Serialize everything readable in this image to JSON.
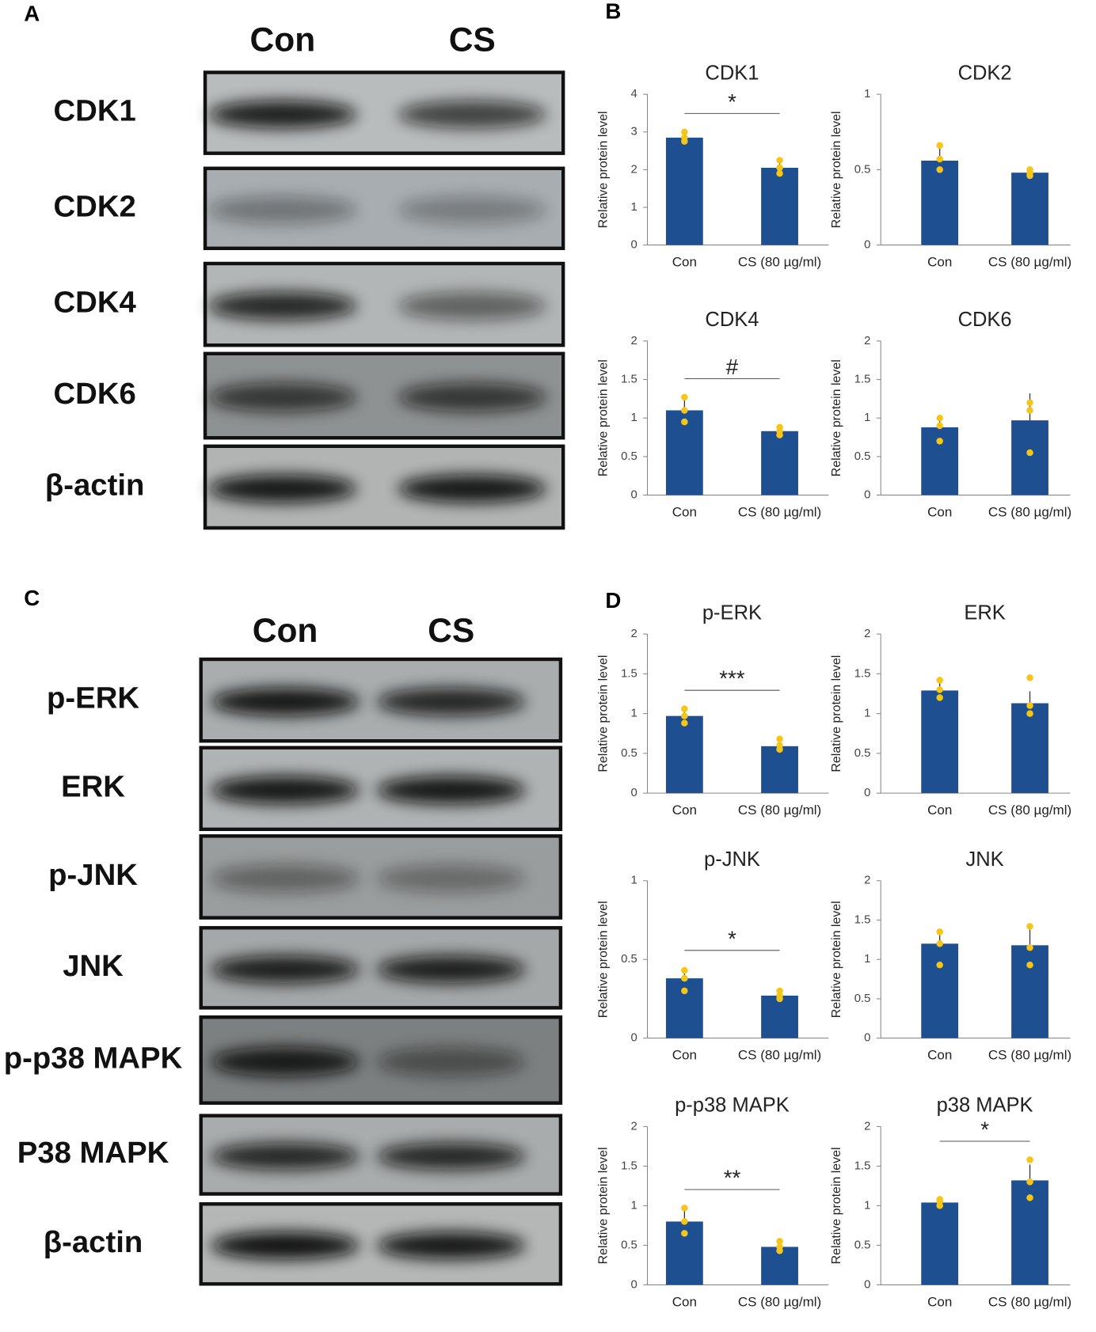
{
  "panels": [
    "A",
    "B",
    "C",
    "D"
  ],
  "blot_a": {
    "lanes": [
      "Con",
      "CS"
    ],
    "rows": [
      "CDK1",
      "CDK2",
      "CDK4",
      "CDK6",
      "β-actin"
    ]
  },
  "blot_c": {
    "lanes": [
      "Con",
      "CS"
    ],
    "rows": [
      "p-ERK",
      "ERK",
      "p-JNK",
      "JNK",
      "p-p38 MAPK",
      "P38 MAPK",
      "β-actin"
    ]
  },
  "chart_data": [
    {
      "type": "bar",
      "title": "CDK1",
      "y_label": "Relative protein level",
      "categories": [
        "Con",
        "CS (80 µg/ml)"
      ],
      "values": [
        2.85,
        2.05
      ],
      "errors": [
        0.15,
        0.2
      ],
      "points": [
        [
          2.75,
          2.85,
          3.0
        ],
        [
          1.9,
          2.05,
          2.25
        ]
      ],
      "significance": "*",
      "color": "#1e4f91",
      "point_color": "#f5c518",
      "ylim": [
        0,
        4
      ],
      "yticks": [
        0,
        1,
        2,
        3,
        4
      ]
    },
    {
      "type": "bar",
      "title": "CDK2",
      "y_label": "Relative protein level",
      "categories": [
        "Con",
        "CS (80 µg/ml)"
      ],
      "values": [
        0.56,
        0.48
      ],
      "errors": [
        0.1,
        0.02
      ],
      "points": [
        [
          0.5,
          0.57,
          0.66
        ],
        [
          0.46,
          0.48,
          0.5
        ]
      ],
      "color": "#1e4f91",
      "point_color": "#f5c518",
      "ylim": [
        0,
        1
      ],
      "yticks": [
        0,
        0.5,
        1
      ]
    },
    {
      "type": "bar",
      "title": "CDK4",
      "y_label": "Relative protein level",
      "categories": [
        "Con",
        "CS (80 µg/ml)"
      ],
      "values": [
        1.1,
        0.83
      ],
      "errors": [
        0.17,
        0.06
      ],
      "points": [
        [
          0.95,
          1.1,
          1.27
        ],
        [
          0.78,
          0.83,
          0.88
        ]
      ],
      "significance": "#",
      "color": "#1e4f91",
      "point_color": "#f5c518",
      "ylim": [
        0,
        2
      ],
      "yticks": [
        0,
        0.5,
        1,
        1.5,
        2
      ]
    },
    {
      "type": "bar",
      "title": "CDK6",
      "y_label": "Relative protein level",
      "categories": [
        "Con",
        "CS (80 µg/ml)"
      ],
      "values": [
        0.88,
        0.97
      ],
      "errors": [
        0.12,
        0.35
      ],
      "points": [
        [
          0.7,
          0.9,
          1.0
        ],
        [
          0.55,
          1.1,
          1.2
        ]
      ],
      "color": "#1e4f91",
      "point_color": "#f5c518",
      "ylim": [
        0,
        2
      ],
      "yticks": [
        0,
        0.5,
        1,
        1.5,
        2
      ]
    },
    {
      "type": "bar",
      "title": "p-ERK",
      "y_label": "Relative protein level",
      "categories": [
        "Con",
        "CS (80 µg/ml)"
      ],
      "values": [
        0.97,
        0.59
      ],
      "errors": [
        0.08,
        0.08
      ],
      "points": [
        [
          0.88,
          0.97,
          1.06
        ],
        [
          0.55,
          0.6,
          0.68
        ]
      ],
      "significance": "***",
      "color": "#1e4f91",
      "point_color": "#f5c518",
      "ylim": [
        0,
        2
      ],
      "yticks": [
        0,
        0.5,
        1,
        1.5,
        2
      ]
    },
    {
      "type": "bar",
      "title": "ERK",
      "y_label": "Relative protein level",
      "categories": [
        "Con",
        "CS (80 µg/ml)"
      ],
      "values": [
        1.29,
        1.13
      ],
      "errors": [
        0.12,
        0.15
      ],
      "points": [
        [
          1.2,
          1.3,
          1.42
        ],
        [
          1.0,
          1.1,
          1.45
        ]
      ],
      "color": "#1e4f91",
      "point_color": "#f5c518",
      "ylim": [
        0,
        2
      ],
      "yticks": [
        0,
        0.5,
        1,
        1.5,
        2
      ]
    },
    {
      "type": "bar",
      "title": "p-JNK",
      "y_label": "Relative protein level",
      "categories": [
        "Con",
        "CS (80 µg/ml)"
      ],
      "values": [
        0.38,
        0.27
      ],
      "errors": [
        0.06,
        0.03
      ],
      "points": [
        [
          0.3,
          0.38,
          0.43
        ],
        [
          0.25,
          0.27,
          0.3
        ]
      ],
      "significance": "*",
      "color": "#1e4f91",
      "point_color": "#f5c518",
      "ylim": [
        0,
        1
      ],
      "yticks": [
        0,
        0.5,
        1
      ]
    },
    {
      "type": "bar",
      "title": "JNK",
      "y_label": "Relative protein level",
      "categories": [
        "Con",
        "CS (80 µg/ml)"
      ],
      "values": [
        1.2,
        1.18
      ],
      "errors": [
        0.13,
        0.2
      ],
      "points": [
        [
          0.93,
          1.2,
          1.35
        ],
        [
          0.93,
          1.15,
          1.42
        ]
      ],
      "color": "#1e4f91",
      "point_color": "#f5c518",
      "ylim": [
        0,
        2
      ],
      "yticks": [
        0,
        0.5,
        1,
        1.5,
        2
      ]
    },
    {
      "type": "bar",
      "title": "p-p38 MAPK",
      "y_label": "Relative protein level",
      "categories": [
        "Con",
        "CS (80 µg/ml)"
      ],
      "values": [
        0.8,
        0.48
      ],
      "errors": [
        0.15,
        0.06
      ],
      "points": [
        [
          0.65,
          0.8,
          0.97
        ],
        [
          0.43,
          0.48,
          0.55
        ]
      ],
      "significance": "**",
      "color": "#1e4f91",
      "point_color": "#f5c518",
      "ylim": [
        0,
        2
      ],
      "yticks": [
        0,
        0.5,
        1,
        1.5,
        2
      ]
    },
    {
      "type": "bar",
      "title": "p38 MAPK",
      "y_label": "Relative protein level",
      "categories": [
        "Con",
        "CS (80 µg/ml)"
      ],
      "values": [
        1.04,
        1.32
      ],
      "errors": [
        0.05,
        0.2
      ],
      "points": [
        [
          1.0,
          1.05,
          1.08
        ],
        [
          1.1,
          1.3,
          1.58
        ]
      ],
      "significance": "*",
      "color": "#1e4f91",
      "point_color": "#f5c518",
      "ylim": [
        0,
        2
      ],
      "yticks": [
        0,
        0.5,
        1,
        1.5,
        2
      ]
    }
  ]
}
